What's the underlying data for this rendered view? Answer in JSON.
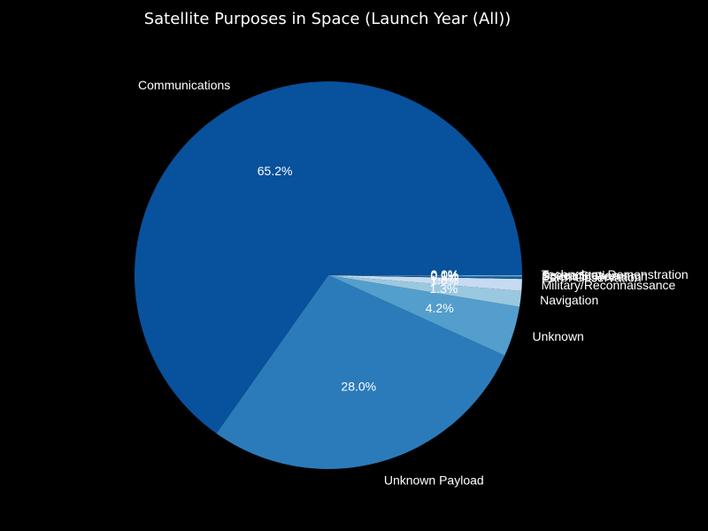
{
  "colors": {
    "background": "#000000",
    "text": "#ffffff",
    "label_text": "#ffffff"
  },
  "chart_data": {
    "type": "pie",
    "title": "Satellite Purposes in Space (Launch Year (All))",
    "start_angle_deg": 0,
    "direction": "counterclockwise",
    "slices": [
      {
        "label": "Communications",
        "value": 65.2,
        "pct_label": "65.2%",
        "color": "#08519c"
      },
      {
        "label": "Unknown Payload",
        "value": 28.0,
        "pct_label": "28.0%",
        "color": "#2b7bba"
      },
      {
        "label": "Unknown",
        "value": 4.2,
        "pct_label": "4.2%",
        "color": "#539ecd"
      },
      {
        "label": "Navigation",
        "value": 1.3,
        "pct_label": "1.3%",
        "color": "#9ac8e0"
      },
      {
        "label": "Military/Reconnaissance",
        "value": 1.0,
        "pct_label": "1.0%",
        "color": "#c6dbef"
      },
      {
        "label": "Earth Observation",
        "value": 0.1,
        "pct_label": "0.1%",
        "color": "#08519c"
      },
      {
        "label": "Scientific Research",
        "value": 0.1,
        "pct_label": "0.1%",
        "color": "#2b7bba"
      },
      {
        "label": "Space Station",
        "value": 0.05,
        "pct_label": "0.0%",
        "color": "#539ecd"
      },
      {
        "label": "Technology Demonstration",
        "value": 0.05,
        "pct_label": "0.0%",
        "color": "#9ac8e0"
      }
    ]
  }
}
